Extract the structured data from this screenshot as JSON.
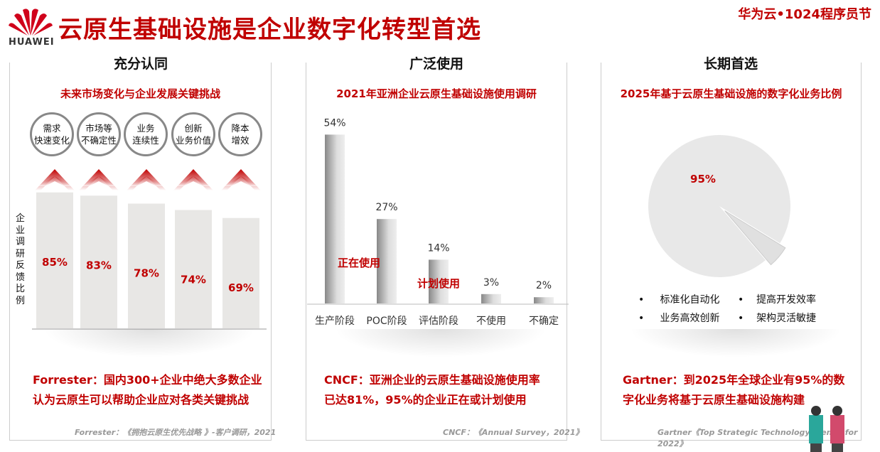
{
  "header": {
    "title": "云原生基础设施是企业数字化转型首选",
    "brand": "华为云•1024程序员节",
    "logo_text": "HUAWEI"
  },
  "panels": [
    {
      "title": "充分认同",
      "subtitle": "未来市场变化与企业发展关键挑战",
      "challenges": [
        "需求\n快速变化",
        "市场等\n不确定性",
        "业务\n连续性",
        "创新\n业务价值",
        "降本\n增效"
      ],
      "ylabel": "企业调研反馈比例",
      "footer": [
        "Forrester：国内300+企业中绝大多数企业",
        "认为云原生可以帮助企业应对各类关键挑战"
      ],
      "source": "Forrester：《拥抱云原生优先战略 》-客户调研，2021"
    },
    {
      "title": "广泛使用",
      "subtitle": "2021年亚洲企业云原生基础设施使用调研",
      "annotations": [
        "正在使用",
        "计划使用"
      ],
      "footer": [
        "CNCF：亚洲企业的云原生基础设施使用率",
        "已达81%，95%的企业正在或计划使用"
      ],
      "source": "CNCF：《Annual Survey，2021》"
    },
    {
      "title": "长期首选",
      "subtitle": "2025年基于云原生基础设施的数字化业务比例",
      "bullets": [
        "标准化自动化",
        "提高开发效率",
        "业务高效创新",
        "架构灵活敏捷"
      ],
      "footer": [
        "Gartner：到2025年全球企业有95%的数",
        "字化业务将基于云原生基础设施构建"
      ],
      "source": "Gartner《Top Strategic Technology Trends for 2022》"
    }
  ],
  "chart_data": [
    {
      "type": "bar",
      "categories": [
        "需求快速变化",
        "市场等不确定性",
        "业务连续性",
        "创新业务价值",
        "降本增效"
      ],
      "values": [
        85,
        83,
        78,
        74,
        69
      ],
      "labels": [
        "85%",
        "83%",
        "78%",
        "74%",
        "69%"
      ],
      "ylabel": "企业调研反馈比例",
      "ylim": [
        0,
        100
      ],
      "color": "#e8e7e5",
      "label_color": "#c00000"
    },
    {
      "type": "bar",
      "categories": [
        "生产阶段",
        "POC阶段",
        "评估阶段",
        "不使用",
        "不确定"
      ],
      "values": [
        54,
        27,
        14,
        3,
        2
      ],
      "labels": [
        "54%",
        "27%",
        "14%",
        "3%",
        "2%"
      ],
      "ylim": [
        0,
        60
      ]
    },
    {
      "type": "pie",
      "values": [
        95,
        5
      ],
      "labels": [
        "95%",
        ""
      ],
      "colors": [
        "#e8e8e8",
        "#e0e0e0"
      ]
    }
  ]
}
